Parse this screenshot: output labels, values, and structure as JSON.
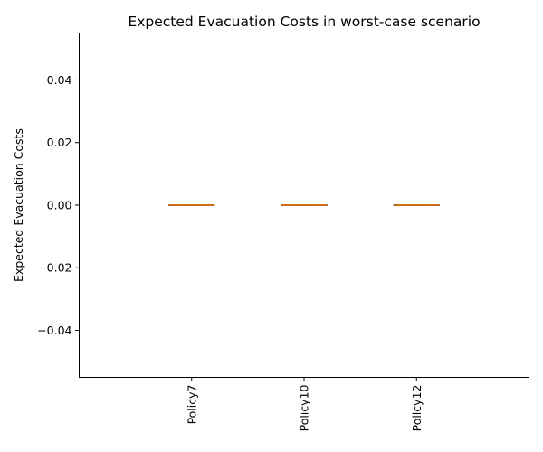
{
  "chart_data": {
    "type": "box",
    "title": "Expected Evacuation Costs in worst-case scenario",
    "xlabel": "",
    "ylabel": "Expected Evacuation Costs",
    "categories": [
      "Policy7",
      "Policy10",
      "Policy12"
    ],
    "series": [
      {
        "category": "Policy7",
        "min": 0.0,
        "q1": 0.0,
        "median": 0.0,
        "q3": 0.0,
        "max": 0.0
      },
      {
        "category": "Policy10",
        "min": 0.0,
        "q1": 0.0,
        "median": 0.0,
        "q3": 0.0,
        "max": 0.0
      },
      {
        "category": "Policy12",
        "min": 0.0,
        "q1": 0.0,
        "median": 0.0,
        "q3": 0.0,
        "max": 0.0
      }
    ],
    "ylim": [
      -0.055,
      0.055
    ],
    "yticks": [
      -0.04,
      -0.02,
      0.0,
      0.02,
      0.04
    ],
    "ytick_labels": [
      "−0.04",
      "−0.02",
      "0.00",
      "0.02",
      "0.04"
    ],
    "grid": false,
    "colors": {
      "median": "#ff7f0e",
      "box": "#000000",
      "axis": "#000000"
    }
  }
}
